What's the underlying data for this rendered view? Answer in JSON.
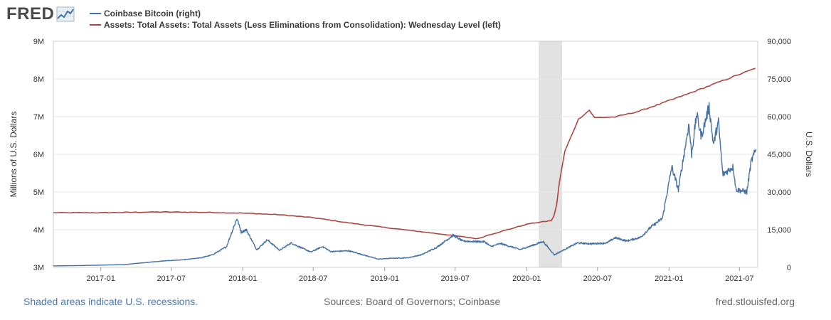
{
  "header": {
    "logo_text": "FRED",
    "logo_icon": "line-graph-icon"
  },
  "footer": {
    "recession_note": "Shaded areas indicate U.S. recessions.",
    "sources": "Sources: Board of Governors; Coinbase",
    "site": "fred.stlouisfed.org"
  },
  "colors": {
    "bitcoin": "#4572a7",
    "assets": "#aa4643",
    "recession": "#e1e1e1",
    "grid": "#e6e6e6",
    "axis_text": "#333333"
  },
  "chart_data": {
    "type": "line",
    "title": "",
    "x_ticks": [
      "2017-01",
      "2017-07",
      "2018-01",
      "2018-07",
      "2019-01",
      "2019-07",
      "2020-01",
      "2020-07",
      "2021-01",
      "2021-07"
    ],
    "x_range": [
      "2016-09",
      "2021-08"
    ],
    "left_axis": {
      "label": "Millions of U.S. Dollars",
      "range": [
        3,
        9
      ],
      "ticks": [
        "3M",
        "4M",
        "5M",
        "6M",
        "7M",
        "8M",
        "9M"
      ]
    },
    "right_axis": {
      "label": "U.S. Dollars",
      "range": [
        0,
        90000
      ],
      "ticks": [
        "0",
        "15,000",
        "30,000",
        "45,000",
        "60,000",
        "75,000",
        "90,000"
      ]
    },
    "recessions": [
      {
        "start": "2020-02",
        "end": "2020-04"
      }
    ],
    "grid": true,
    "legend_position": "top",
    "series": [
      {
        "name": "Coinbase Bitcoin (right)",
        "axis": "right",
        "color": "#4572a7",
        "points": [
          [
            "2016-09-01",
            600
          ],
          [
            "2016-11-01",
            700
          ],
          [
            "2017-01-01",
            900
          ],
          [
            "2017-03-01",
            1100
          ],
          [
            "2017-05-01",
            2000
          ],
          [
            "2017-06-15",
            2600
          ],
          [
            "2017-08-01",
            3000
          ],
          [
            "2017-09-15",
            3800
          ],
          [
            "2017-10-15",
            5000
          ],
          [
            "2017-11-20",
            8200
          ],
          [
            "2017-12-17",
            19500
          ],
          [
            "2017-12-28",
            14000
          ],
          [
            "2018-01-10",
            15000
          ],
          [
            "2018-02-06",
            7000
          ],
          [
            "2018-03-05",
            11000
          ],
          [
            "2018-04-06",
            6800
          ],
          [
            "2018-05-05",
            9700
          ],
          [
            "2018-06-25",
            6100
          ],
          [
            "2018-07-25",
            8300
          ],
          [
            "2018-08-15",
            6300
          ],
          [
            "2018-10-01",
            6600
          ],
          [
            "2018-11-20",
            4400
          ],
          [
            "2018-12-15",
            3300
          ],
          [
            "2019-01-15",
            3600
          ],
          [
            "2019-03-01",
            3800
          ],
          [
            "2019-04-05",
            5000
          ],
          [
            "2019-05-15",
            8000
          ],
          [
            "2019-06-26",
            12800
          ],
          [
            "2019-07-20",
            10500
          ],
          [
            "2019-08-15",
            10300
          ],
          [
            "2019-09-15",
            10200
          ],
          [
            "2019-10-01",
            8300
          ],
          [
            "2019-10-26",
            9500
          ],
          [
            "2019-12-15",
            7100
          ],
          [
            "2020-01-15",
            8700
          ],
          [
            "2020-02-12",
            10300
          ],
          [
            "2020-03-12",
            5000
          ],
          [
            "2020-04-01",
            6600
          ],
          [
            "2020-05-10",
            9700
          ],
          [
            "2020-06-15",
            9400
          ],
          [
            "2020-07-25",
            9700
          ],
          [
            "2020-08-15",
            11800
          ],
          [
            "2020-09-15",
            10500
          ],
          [
            "2020-10-20",
            12000
          ],
          [
            "2020-11-15",
            16000
          ],
          [
            "2020-12-15",
            19500
          ],
          [
            "2021-01-08",
            40000
          ],
          [
            "2021-01-25",
            31000
          ],
          [
            "2021-02-21",
            57000
          ],
          [
            "2021-02-28",
            45000
          ],
          [
            "2021-03-13",
            61000
          ],
          [
            "2021-03-25",
            52000
          ],
          [
            "2021-04-14",
            64000
          ],
          [
            "2021-04-25",
            49000
          ],
          [
            "2021-05-08",
            58000
          ],
          [
            "2021-05-19",
            37000
          ],
          [
            "2021-06-15",
            40000
          ],
          [
            "2021-06-22",
            31000
          ],
          [
            "2021-07-20",
            30000
          ],
          [
            "2021-07-31",
            42000
          ],
          [
            "2021-08-13",
            47000
          ]
        ]
      },
      {
        "name": "Assets: Total Assets: Total Assets (Less Eliminations from Consolidation): Wednesday Level (left)",
        "axis": "left",
        "color": "#aa4643",
        "points": [
          [
            "2016-09-01",
            4.45
          ],
          [
            "2017-01-01",
            4.45
          ],
          [
            "2017-06-01",
            4.47
          ],
          [
            "2017-10-01",
            4.46
          ],
          [
            "2018-01-01",
            4.44
          ],
          [
            "2018-04-01",
            4.4
          ],
          [
            "2018-07-01",
            4.32
          ],
          [
            "2018-10-01",
            4.18
          ],
          [
            "2019-01-01",
            4.06
          ],
          [
            "2019-04-01",
            3.95
          ],
          [
            "2019-07-01",
            3.84
          ],
          [
            "2019-08-28",
            3.76
          ],
          [
            "2019-09-25",
            3.86
          ],
          [
            "2019-10-30",
            3.96
          ],
          [
            "2019-12-10",
            4.08
          ],
          [
            "2020-01-08",
            4.16
          ],
          [
            "2020-03-04",
            4.24
          ],
          [
            "2020-03-11",
            4.36
          ],
          [
            "2020-03-18",
            4.67
          ],
          [
            "2020-03-25",
            5.25
          ],
          [
            "2020-04-08",
            6.08
          ],
          [
            "2020-05-13",
            6.93
          ],
          [
            "2020-06-10",
            7.17
          ],
          [
            "2020-06-24",
            6.97
          ],
          [
            "2020-08-15",
            6.99
          ],
          [
            "2020-10-15",
            7.14
          ],
          [
            "2020-12-15",
            7.36
          ],
          [
            "2021-02-15",
            7.59
          ],
          [
            "2021-04-15",
            7.82
          ],
          [
            "2021-06-15",
            8.06
          ],
          [
            "2021-08-11",
            8.28
          ]
        ]
      }
    ]
  }
}
